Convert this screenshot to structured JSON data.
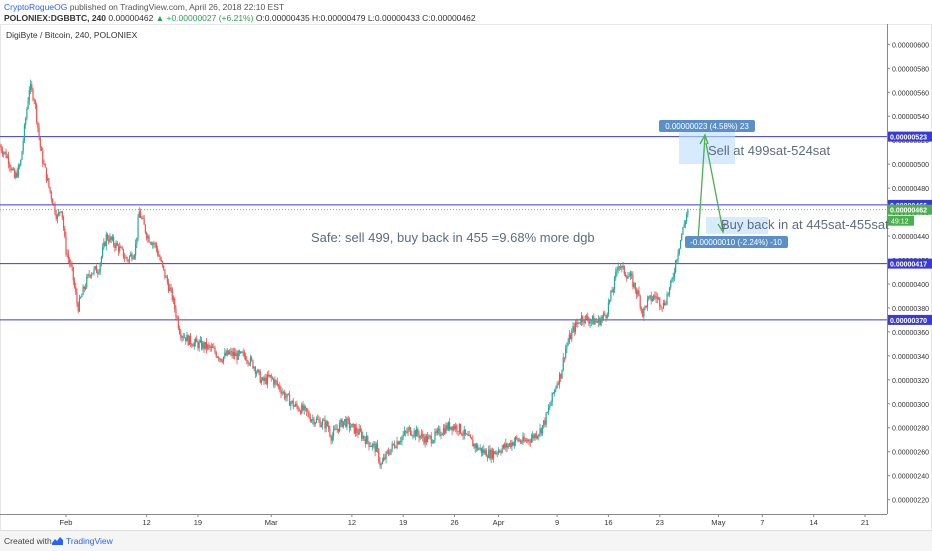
{
  "header": {
    "author": "CryptoRogueOG",
    "published_text": "published on TradingView.com, April 26, 2018 22:10 EST",
    "symbol_line": "POLONIEX:DGBBTC, 240",
    "last_price": "0.00000462",
    "change": "▲ +0.00000027 (+6.21%)",
    "ohlc": "O:0.00000435 H:0.00000479 L:0.00000433 C:0.00000462"
  },
  "footer": {
    "created_with": "Created with",
    "brand": "TradingView"
  },
  "colors": {
    "up": "#26a69a",
    "down": "#ef5350",
    "hline": "#3a3ad6",
    "note": "#5d6c7f",
    "arrow": "#4caf50"
  },
  "chart_data": {
    "type": "candlestick",
    "title": "DigiByte / Bitcoin, 240, POLONIEX",
    "x_tick_labels": [
      "Feb",
      "12",
      "19",
      "Mar",
      "12",
      "19",
      "26",
      "Apr",
      "9",
      "16",
      "23",
      "May",
      "7",
      "14",
      "21"
    ],
    "y_axis": {
      "ylim": [
        2.08e-06,
        6.17e-06
      ],
      "ticks": [
        "0.00000220",
        "0.00000240",
        "0.00000260",
        "0.00000280",
        "0.00000300",
        "0.00000320",
        "0.00000340",
        "0.00000360",
        "0.00000380",
        "0.00000400",
        "0.00000420",
        "0.00000440",
        "0.00000460",
        "0.00000480",
        "0.00000500",
        "0.00000520",
        "0.00000540",
        "0.00000560",
        "0.00000580",
        "0.00000600"
      ]
    },
    "horizontal_lines": [
      {
        "label": "0.00000523",
        "value": 5.23e-06
      },
      {
        "label": "0.00000466",
        "value": 4.66e-06
      },
      {
        "label": "0.00000417",
        "value": 4.17e-06
      },
      {
        "label": "0.00000370",
        "value": 3.7e-06
      }
    ],
    "price_marker": {
      "label": "0.00000462",
      "value": 4.62e-06
    },
    "countdown_label": "49:12",
    "price_path": [
      [
        0.0,
        5.15e-06
      ],
      [
        1.0,
        5.05e-06
      ],
      [
        1.8,
        4.88e-06
      ],
      [
        2.5,
        5e-06
      ],
      [
        3.0,
        5.3e-06
      ],
      [
        3.6,
        5.65e-06
      ],
      [
        4.2,
        5.55e-06
      ],
      [
        5.0,
        5.1e-06
      ],
      [
        6.0,
        4.8e-06
      ],
      [
        7.0,
        4.55e-06
      ],
      [
        7.5,
        4.65e-06
      ],
      [
        8.0,
        4.3e-06
      ],
      [
        8.8,
        4.1e-06
      ],
      [
        9.5,
        3.8e-06
      ],
      [
        10.2,
        3.95e-06
      ],
      [
        11.0,
        4.1e-06
      ],
      [
        12.0,
        4.12e-06
      ],
      [
        13.0,
        4.4e-06
      ],
      [
        14.5,
        4.3e-06
      ],
      [
        15.5,
        4.2e-06
      ],
      [
        16.5,
        4.28e-06
      ],
      [
        17.0,
        4.6e-06
      ],
      [
        18.0,
        4.4e-06
      ],
      [
        19.0,
        4.32e-06
      ],
      [
        20.0,
        4.1e-06
      ],
      [
        21.0,
        3.9e-06
      ],
      [
        22.0,
        3.6e-06
      ],
      [
        23.0,
        3.53e-06
      ],
      [
        24.0,
        3.5e-06
      ],
      [
        25.0,
        3.48e-06
      ],
      [
        26.0,
        3.45e-06
      ],
      [
        27.0,
        3.38e-06
      ],
      [
        28.0,
        3.42e-06
      ],
      [
        29.0,
        3.4e-06
      ],
      [
        30.0,
        3.4e-06
      ],
      [
        31.0,
        3.32e-06
      ],
      [
        32.0,
        3.18e-06
      ],
      [
        33.0,
        3.22e-06
      ],
      [
        34.0,
        3.15e-06
      ],
      [
        35.0,
        3.05e-06
      ],
      [
        36.0,
        2.98e-06
      ],
      [
        37.0,
        2.95e-06
      ],
      [
        38.0,
        2.88e-06
      ],
      [
        39.0,
        2.85e-06
      ],
      [
        40.0,
        2.82e-06
      ],
      [
        40.5,
        2.72e-06
      ],
      [
        41.0,
        2.78e-06
      ],
      [
        42.0,
        2.86e-06
      ],
      [
        43.0,
        2.8e-06
      ],
      [
        44.0,
        2.75e-06
      ],
      [
        45.0,
        2.68e-06
      ],
      [
        46.0,
        2.62e-06
      ],
      [
        46.5,
        2.48e-06
      ],
      [
        47.0,
        2.55e-06
      ],
      [
        48.0,
        2.65e-06
      ],
      [
        49.0,
        2.72e-06
      ],
      [
        50.0,
        2.78e-06
      ],
      [
        51.0,
        2.75e-06
      ],
      [
        52.0,
        2.7e-06
      ],
      [
        53.0,
        2.72e-06
      ],
      [
        54.0,
        2.78e-06
      ],
      [
        55.0,
        2.82e-06
      ],
      [
        56.0,
        2.8e-06
      ],
      [
        57.0,
        2.72e-06
      ],
      [
        58.0,
        2.65e-06
      ],
      [
        59.0,
        2.6e-06
      ],
      [
        60.0,
        2.58e-06
      ],
      [
        61.0,
        2.62e-06
      ],
      [
        62.0,
        2.65e-06
      ],
      [
        63.0,
        2.7e-06
      ],
      [
        64.0,
        2.68e-06
      ],
      [
        65.0,
        2.72e-06
      ],
      [
        66.0,
        2.78e-06
      ],
      [
        66.5,
        2.85e-06
      ],
      [
        67.0,
        2.95e-06
      ],
      [
        68.0,
        3.18e-06
      ],
      [
        68.5,
        3.25e-06
      ],
      [
        69.0,
        3.45e-06
      ],
      [
        70.0,
        3.62e-06
      ],
      [
        71.0,
        3.72e-06
      ],
      [
        72.0,
        3.7e-06
      ],
      [
        73.0,
        3.68e-06
      ],
      [
        74.0,
        3.75e-06
      ],
      [
        75.0,
        4e-06
      ],
      [
        75.5,
        4.18e-06
      ],
      [
        76.0,
        4.12e-06
      ],
      [
        77.0,
        4.05e-06
      ],
      [
        78.0,
        3.9e-06
      ],
      [
        78.5,
        3.75e-06
      ],
      [
        79.0,
        3.85e-06
      ],
      [
        80.0,
        3.9e-06
      ],
      [
        81.0,
        3.82e-06
      ],
      [
        82.0,
        4e-06
      ],
      [
        82.6,
        4.22e-06
      ],
      [
        83.2,
        4.4e-06
      ],
      [
        84.0,
        4.62e-06
      ]
    ],
    "date_range": {
      "start": "2018-01-23",
      "end": "2018-04-27",
      "visible_until": "2018-05-24"
    },
    "annotations": [
      {
        "text": "Safe: sell 499, buy back in 455 =9.68% more dgb"
      },
      {
        "text": "Sell at 499sat-524sat"
      },
      {
        "text": "Buy back in at 445sat-455sat"
      },
      {
        "text": "0.00000023 (4.58%) 23"
      },
      {
        "text": "-0.00000010 (-2.24%) -10"
      }
    ],
    "grid": false,
    "legend": "none"
  }
}
